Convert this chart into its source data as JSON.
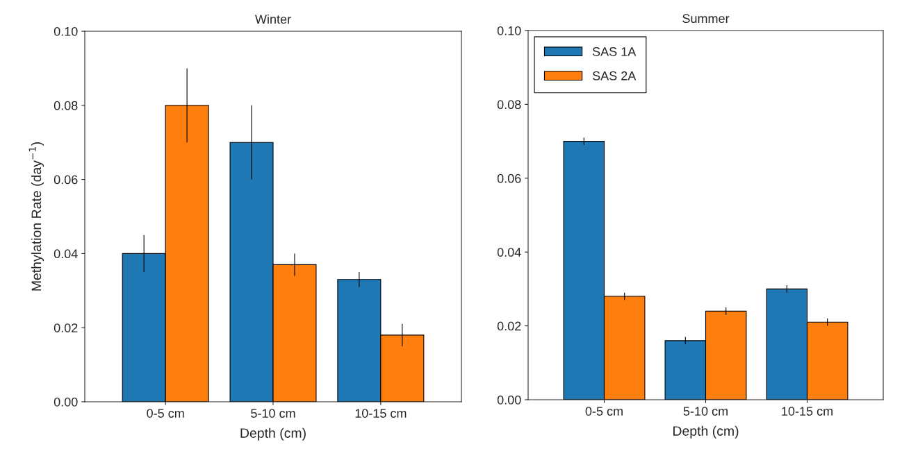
{
  "chart_data": [
    {
      "type": "bar",
      "title": "Winter",
      "xlabel": "Depth (cm)",
      "ylabel": "Methylation Rate (day$^{−1}$)",
      "categories": [
        "0-5 cm",
        "5-10 cm",
        "10-15 cm"
      ],
      "ylim": [
        0,
        0.1
      ],
      "yticks": [
        {
          "value": 0,
          "label": "0.00"
        },
        {
          "value": 0.02,
          "label": "0.02"
        },
        {
          "value": 0.04,
          "label": "0.04"
        },
        {
          "value": 0.06,
          "label": "0.06"
        },
        {
          "value": 0.08,
          "label": "0.08"
        },
        {
          "value": 0.1,
          "label": "0.10"
        }
      ],
      "grid": false,
      "legend": false,
      "series": [
        {
          "color": "#1f77b4",
          "values": [
            0.04,
            0.07,
            0.033
          ],
          "errors": [
            0.005,
            0.01,
            0.002
          ]
        },
        {
          "color": "#ff7f0e",
          "values": [
            0.08,
            0.037,
            0.018
          ],
          "errors": [
            0.01,
            0.003,
            0.003
          ]
        }
      ]
    },
    {
      "type": "bar",
      "title": "Summer",
      "xlabel": "Depth (cm)",
      "categories": [
        "0-5 cm",
        "5-10 cm",
        "10-15 cm"
      ],
      "ylim": [
        0,
        0.1
      ],
      "yticks": [
        {
          "value": 0,
          "label": "0.00"
        },
        {
          "value": 0.02,
          "label": "0.02"
        },
        {
          "value": 0.04,
          "label": "0.04"
        },
        {
          "value": 0.06,
          "label": "0.06"
        },
        {
          "value": 0.08,
          "label": "0.08"
        },
        {
          "value": 0.1,
          "label": "0.10"
        }
      ],
      "grid": false,
      "legend": "top left",
      "series": [
        {
          "name": "SAS 1A",
          "color": "#1f77b4",
          "values": [
            0.07,
            0.016,
            0.03
          ],
          "errors": [
            0.001,
            0.001,
            0.001
          ]
        },
        {
          "name": "SAS 2A",
          "color": "#ff7f0e",
          "values": [
            0.028,
            0.024,
            0.021
          ],
          "errors": [
            0.001,
            0.001,
            0.001
          ]
        }
      ]
    }
  ]
}
